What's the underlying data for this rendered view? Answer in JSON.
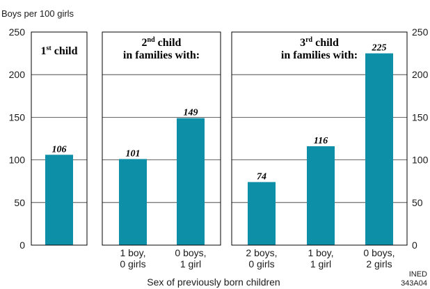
{
  "chart_data": {
    "type": "bar",
    "ylabel": "Boys per 100 girls",
    "xlabel": "Sex of previously born children",
    "ylim": [
      0,
      250
    ],
    "yticks": [
      "0",
      "50",
      "100",
      "150",
      "200",
      "250"
    ],
    "grid": true,
    "bar_color": "#0E8FA8",
    "panels": [
      {
        "title_main": "1",
        "title_sup": "st",
        "title_rest": " child",
        "title_line2": "",
        "categories": [
          ""
        ],
        "category_lines": [
          [
            "",
            ""
          ]
        ],
        "values": [
          106
        ]
      },
      {
        "title_main": "2",
        "title_sup": "nd",
        "title_rest": " child",
        "title_line2": "in families with:",
        "categories": [
          "1 boy, 0 girls",
          "0 boys, 1 girl"
        ],
        "category_lines": [
          [
            "1 boy,",
            "0 girls"
          ],
          [
            "0 boys,",
            "1 girl"
          ]
        ],
        "values": [
          101,
          149
        ]
      },
      {
        "title_main": "3",
        "title_sup": "rd",
        "title_rest": " child",
        "title_line2": "in families with:",
        "categories": [
          "2 boys, 0 girls",
          "1 boy, 1 girl",
          "0 boys, 2 girls"
        ],
        "category_lines": [
          [
            "2 boys,",
            "0 girls"
          ],
          [
            "1 boy,",
            "1 girl"
          ],
          [
            "0 boys,",
            "2 girls"
          ]
        ],
        "values": [
          74,
          116,
          225
        ]
      }
    ]
  },
  "source_note": {
    "line1": "INED",
    "line2": "343A04"
  }
}
